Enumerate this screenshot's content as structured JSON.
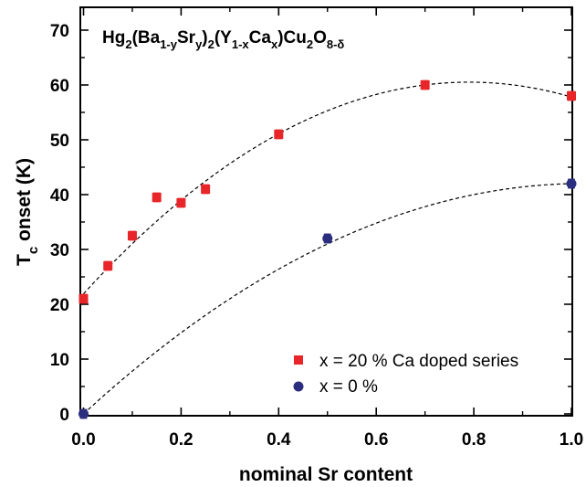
{
  "chart_data": {
    "type": "scatter",
    "title": "",
    "formula": {
      "parts": [
        "Hg",
        "2",
        "(Ba",
        "1-y",
        "Sr",
        "y",
        ")",
        "2",
        "(Y",
        "1-x",
        "Ca",
        "x",
        ")Cu",
        "2",
        "O",
        "8-δ"
      ]
    },
    "xlabel": "nominal Sr content",
    "ylabel_main": "T",
    "ylabel_sub": "c",
    "ylabel_rest": " onset (K)",
    "xlim": [
      0.0,
      1.0
    ],
    "ylim": [
      0,
      70
    ],
    "xticks": [
      "0.0",
      "0.2",
      "0.4",
      "0.6",
      "0.8",
      "1.0"
    ],
    "yticks": [
      "0",
      "10",
      "20",
      "30",
      "40",
      "50",
      "60",
      "70"
    ],
    "legend_position": "bottom-right",
    "series": [
      {
        "name": "x = 20 % Ca doped series",
        "marker": "square",
        "color": "#e8262a",
        "x": [
          0.0,
          0.05,
          0.1,
          0.15,
          0.2,
          0.25,
          0.4,
          0.7,
          1.0
        ],
        "y": [
          21.0,
          27.0,
          32.5,
          39.5,
          38.5,
          41.0,
          51.0,
          60.0,
          58.0
        ],
        "yerr": [
          0.8,
          0.8,
          0.8,
          0.8,
          0.8,
          0.8,
          0.8,
          0.8,
          0.8
        ]
      },
      {
        "name": "x = 0 %",
        "marker": "circle",
        "color": "#2b2d7f",
        "x": [
          0.0,
          0.5,
          1.0
        ],
        "y": [
          0.0,
          32.0,
          42.0
        ],
        "yerr": [
          0.8,
          0.8,
          0.8
        ]
      }
    ],
    "fit_curves": [
      {
        "style": "dashed",
        "color": "#000000",
        "coefficients": [
          21.9,
          97.7,
          -61.8
        ],
        "x_range": [
          0.0,
          1.0
        ]
      },
      {
        "style": "dashed",
        "color": "#000000",
        "coefficients": [
          0.0,
          82.0,
          -40.0
        ],
        "x_range": [
          0.0,
          1.0
        ]
      }
    ]
  }
}
